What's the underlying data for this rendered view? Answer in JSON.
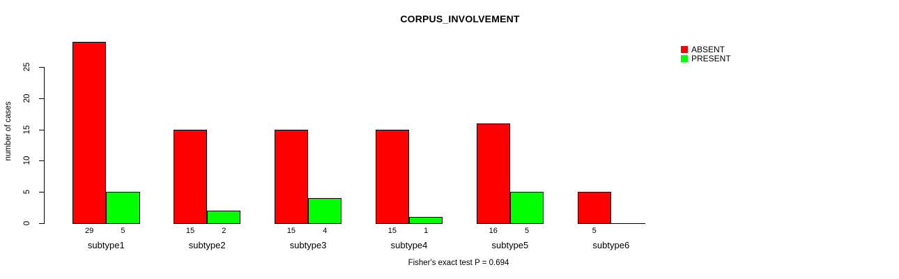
{
  "chart_data": {
    "type": "bar",
    "title": "CORPUS_INVOLVEMENT",
    "xlabel": "",
    "ylabel": "number of cases",
    "categories": [
      "subtype1",
      "subtype2",
      "subtype3",
      "subtype4",
      "subtype5",
      "subtype6"
    ],
    "series": [
      {
        "name": "ABSENT",
        "color": "#ff0000",
        "values": [
          29,
          15,
          15,
          15,
          16,
          5
        ]
      },
      {
        "name": "PRESENT",
        "color": "#00ff00",
        "values": [
          5,
          2,
          4,
          1,
          5,
          0
        ]
      }
    ],
    "yticks": [
      0,
      5,
      10,
      15,
      20,
      25
    ],
    "ylim": [
      0,
      29
    ],
    "grid": false,
    "legend_position": "top-right",
    "bar_value_labels_shown": true,
    "zero_values_unlabeled": true,
    "annotation": "Fisher's exact test P = 0.694",
    "colors": {
      "axis": "#000000",
      "text": "#000000",
      "background": "#ffffff"
    }
  }
}
